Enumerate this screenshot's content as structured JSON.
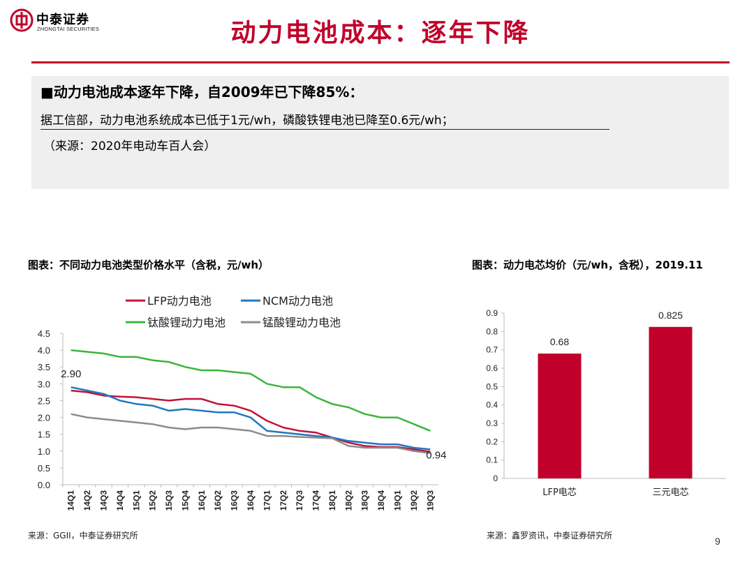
{
  "header": {
    "logo_cn": "中泰证券",
    "logo_en": "ZHONGTAI SECURITIES",
    "title": "动力电池成本：逐年下降"
  },
  "summary": {
    "headline": "■动力电池成本逐年下降，自2009年已下降85%：",
    "detail": "据工信部，动力电池系统成本已低于1元/wh，磷酸铁锂电池已降至0.6元/wh；",
    "source": "（来源：2020年电动车百人会）"
  },
  "colors": {
    "brand_red": "#c0002a",
    "lfp": "#c0143c",
    "ncm": "#1f78c0",
    "lto": "#3cb43c",
    "lmo": "#8c8c8c",
    "bar": "#c0002a"
  },
  "chart_data": [
    {
      "type": "line",
      "title": "图表：不同动力电池类型价格水平（含税，元/wh）",
      "categories": [
        "14Q1",
        "14Q2",
        "14Q3",
        "14Q4",
        "15Q1",
        "15Q2",
        "15Q3",
        "15Q4",
        "16Q1",
        "16Q2",
        "16Q3",
        "16Q4",
        "17Q1",
        "17Q2",
        "17Q3",
        "17Q4",
        "18Q1",
        "18Q2",
        "18Q3",
        "18Q4",
        "19Q1",
        "19Q2",
        "19Q3"
      ],
      "ylim": [
        0,
        4.5
      ],
      "yticks": [
        "0.0",
        "0.5",
        "1.0",
        "1.5",
        "2.0",
        "2.5",
        "3.0",
        "3.5",
        "4.0",
        "4.5"
      ],
      "grid": false,
      "legend": "top",
      "series": [
        {
          "name": "LFP动力电池",
          "color_key": "lfp",
          "values": [
            2.8,
            2.75,
            2.65,
            2.62,
            2.6,
            2.55,
            2.5,
            2.55,
            2.55,
            2.4,
            2.35,
            2.2,
            1.9,
            1.7,
            1.6,
            1.55,
            1.4,
            1.25,
            1.15,
            1.12,
            1.12,
            1.05,
            0.98
          ]
        },
        {
          "name": "NCM动力电池",
          "color_key": "ncm",
          "values": [
            2.9,
            2.8,
            2.7,
            2.5,
            2.4,
            2.35,
            2.2,
            2.25,
            2.2,
            2.15,
            2.15,
            2.0,
            1.6,
            1.55,
            1.5,
            1.45,
            1.4,
            1.3,
            1.25,
            1.2,
            1.2,
            1.1,
            1.05
          ]
        },
        {
          "name": "钛酸锂动力电池",
          "color_key": "lto",
          "values": [
            4.0,
            3.95,
            3.9,
            3.8,
            3.8,
            3.7,
            3.65,
            3.5,
            3.4,
            3.4,
            3.35,
            3.3,
            3.0,
            2.9,
            2.9,
            2.6,
            2.4,
            2.3,
            2.1,
            2.0,
            2.0,
            1.8,
            1.6
          ]
        },
        {
          "name": "锰酸锂动力电池",
          "color_key": "lmo",
          "values": [
            2.1,
            2.0,
            1.95,
            1.9,
            1.85,
            1.8,
            1.7,
            1.65,
            1.7,
            1.7,
            1.65,
            1.6,
            1.45,
            1.45,
            1.42,
            1.4,
            1.38,
            1.15,
            1.1,
            1.1,
            1.1,
            1.0,
            0.94
          ]
        }
      ],
      "annotations": [
        {
          "text": "2.90",
          "category": "14Q1",
          "value": 2.9
        },
        {
          "text": "0.94",
          "category": "19Q3",
          "value": 0.94
        }
      ],
      "source": "来源：GGII，中泰证券研究所"
    },
    {
      "type": "bar",
      "title": "图表：动力电芯均价（元/wh，含税），2019.11",
      "categories": [
        "LFP电芯",
        "三元电芯"
      ],
      "values": [
        0.68,
        0.825
      ],
      "value_labels": [
        "0.68",
        "0.825"
      ],
      "ylim": [
        0,
        0.9
      ],
      "yticks": [
        "0",
        "0.1",
        "0.2",
        "0.3",
        "0.4",
        "0.5",
        "0.6",
        "0.7",
        "0.8",
        "0.9"
      ],
      "grid": false,
      "source": "来源：鑫罗资讯，中泰证券研究所"
    }
  ],
  "page_number": "9"
}
